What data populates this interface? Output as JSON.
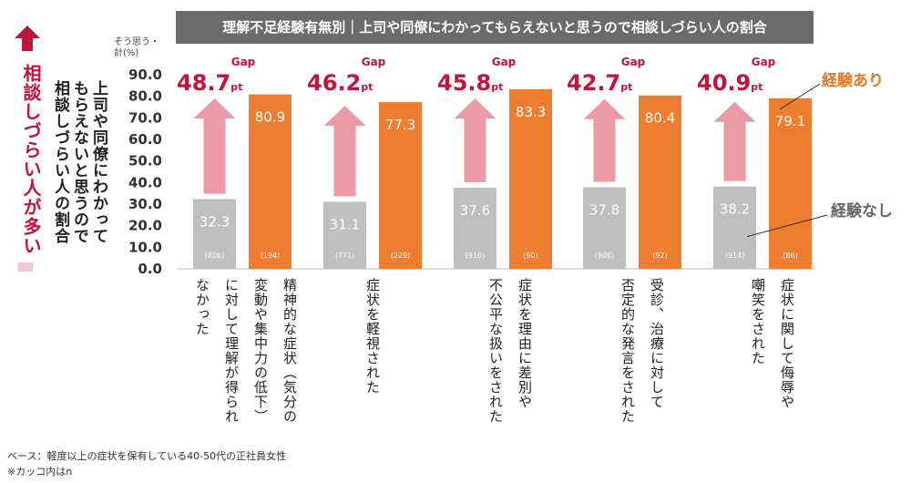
{
  "chart_data": {
    "type": "bar",
    "title": "理解不足経験有無別｜上司や同僚にわかってもらえないと思うので相談しづらい人の割合",
    "ylabel": "上司や同僚にわかってもらえないと思うので相談しづらい人の割合",
    "ylabel_unit": "そう思う・計(%)",
    "ylim": [
      0,
      90
    ],
    "yticks": [
      "0.0",
      "10.0",
      "20.0",
      "30.0",
      "40.0",
      "50.0",
      "60.0",
      "70.0",
      "80.0",
      "90.0"
    ],
    "categories": [
      "精神的な症状（気分の変動や集中力の低下）に対して理解が得られなかった",
      "症状を軽視された",
      "症状を理由に差別や不公平な扱いをされた",
      "受診、治療に対して否定的な発言をされた",
      "症状に関して侮辱や嘲笑をされた"
    ],
    "category_lines": [
      [
        "精神的な症状（気分の",
        "変動や集中力の低下）",
        "に対して理解が得られ",
        "なかった"
      ],
      [
        "症状を軽視された"
      ],
      [
        "症状を理由に差別や",
        "不公平な扱いをされた"
      ],
      [
        "受診、治療に対して",
        "否定的な発言をされた"
      ],
      [
        "症状に関して侮辱や",
        "嘲笑をされた"
      ]
    ],
    "series": [
      {
        "name": "経験なし",
        "values": [
          32.3,
          31.1,
          37.6,
          37.8,
          38.2
        ],
        "labels": [
          "32.3",
          "31.1",
          "37.6",
          "37.8",
          "38.2"
        ],
        "n": [
          "(806)",
          "(771)",
          "(910)",
          "(908)",
          "(914)"
        ],
        "color": "#bfbfbf"
      },
      {
        "name": "経験あり",
        "values": [
          80.9,
          77.3,
          83.3,
          80.4,
          79.1
        ],
        "labels": [
          "80.9",
          "77.3",
          "83.3",
          "80.4",
          "79.1"
        ],
        "n": [
          "(194)",
          "(229)",
          "(90)",
          "(92)",
          "(86)"
        ],
        "color": "#ed7d31"
      }
    ],
    "gap_label": "Gap",
    "gaps": [
      "48.7",
      "46.2",
      "45.8",
      "42.7",
      "40.9"
    ],
    "gap_unit": "pt"
  },
  "side_label": "相談しづらい人が多い",
  "ylabel_lines": [
    "上司や同僚にわかって",
    "もらえないと思うので",
    "相談しづらい人の割合"
  ],
  "ylabel_unit_lines": [
    "そう思う・",
    "計(%)"
  ],
  "legend": {
    "yes": "経験あり",
    "no": "経験なし"
  },
  "notes": {
    "base": "ベース：軽度以上の症状を保有している40-50代の正社員女性",
    "count": "※カッコ内はn"
  },
  "colors": {
    "accent_red": "#c0143c",
    "arrow_pink": "#ec9aa5",
    "orange": "#ed7d31",
    "gray": "#bfbfbf",
    "title_bg": "#6b6b6b"
  }
}
